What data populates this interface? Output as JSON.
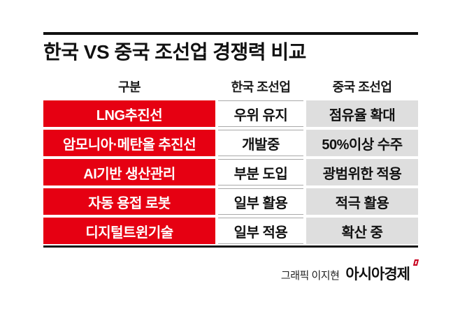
{
  "title": "한국 VS 중국 조선업 경쟁력 비교",
  "colors": {
    "accent_red": "#e60012",
    "cell_gray": "#dedede",
    "line_black": "#111111",
    "border_gray": "#a9a9a9",
    "brand_red": "#c8001e"
  },
  "chart_data": {
    "type": "table",
    "title": "한국 VS 중국 조선업 경쟁력 비교",
    "columns": [
      "구분",
      "한국 조선업",
      "중국 조선업"
    ],
    "rows": [
      [
        "LNG추진선",
        "우위 유지",
        "점유율 확대"
      ],
      [
        "암모니아·메탄올 추진선",
        "개발중",
        "50%이상 수주"
      ],
      [
        "AI기반 생산관리",
        "부분 도입",
        "광범위한 적용"
      ],
      [
        "자동 용접 로봇",
        "일부 활용",
        "적극 활용"
      ],
      [
        "디지털트윈기술",
        "일부 적용",
        "확산 중"
      ]
    ],
    "layout_hints": {
      "category_column_style": "white-bold-text-on-red",
      "korea_column_style": "black-text-on-white",
      "china_column_style": "black-text-on-light-gray"
    }
  },
  "footer": {
    "credit": "그래픽 이지현",
    "brand": "아시아경제"
  }
}
